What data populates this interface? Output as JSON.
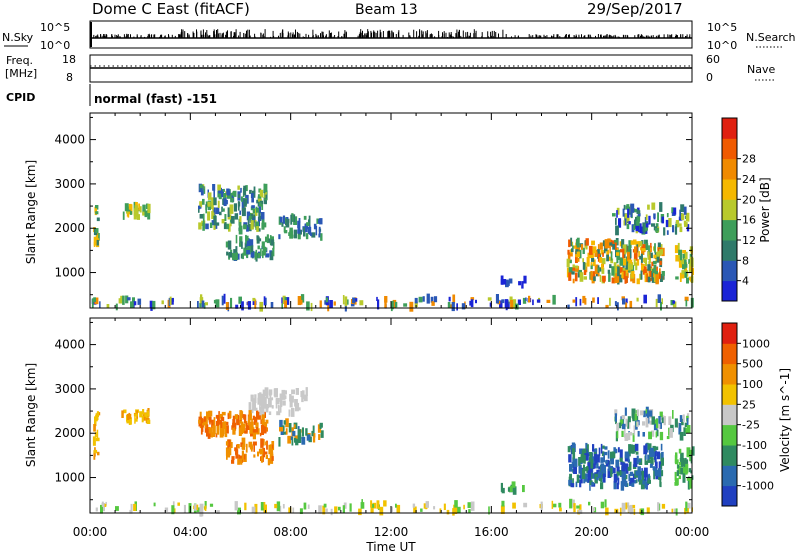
{
  "header": {
    "title": "Dome C East (fitACF)",
    "beam": "Beam 13",
    "date": "29/Sep/2017"
  },
  "status_panels": {
    "nsky_label": "N.Sky",
    "nsearch_label": "N.Search",
    "noise_ticks": [
      "10^5",
      "10^0"
    ],
    "noise_ticks_right": [
      "10^5",
      "10^0"
    ],
    "freq_label": "Freq.",
    "freq_unit": "[MHz]",
    "freq_ticks": [
      "18",
      "8"
    ],
    "nave_label": "Nave",
    "nave_ticks": [
      "60",
      "0"
    ],
    "cpid_label": "CPID",
    "cpid_text": "normal (fast) -151"
  },
  "chart_data": [
    {
      "type": "heatmap",
      "name": "power",
      "ylabel": "Slant Range [km]",
      "y_ticks": [
        1000,
        2000,
        3000,
        4000
      ],
      "ylim": [
        200,
        4600
      ],
      "xlim": [
        0,
        24
      ],
      "colorbar": {
        "label": "Power [dB]",
        "ticks": [
          "4",
          "8",
          "12",
          "16",
          "20",
          "24",
          "28"
        ],
        "colors": [
          "#1a24d6",
          "#2a57b5",
          "#2f7a6a",
          "#3e9e5a",
          "#b8c92c",
          "#f5b800",
          "#f08a00",
          "#f05a00",
          "#e02010"
        ]
      },
      "clusters": [
        {
          "t0": 0.1,
          "t1": 0.3,
          "r0": 1500,
          "r1": 2500,
          "n": 16,
          "c": [
            2,
            3,
            5
          ]
        },
        {
          "t0": 1.2,
          "t1": 2.3,
          "r0": 2250,
          "r1": 2500,
          "n": 30,
          "c": [
            3,
            4,
            5
          ]
        },
        {
          "t0": 4.3,
          "t1": 7.0,
          "r0": 1950,
          "r1": 2950,
          "n": 170,
          "c": [
            1,
            2,
            3,
            4
          ]
        },
        {
          "t0": 5.4,
          "t1": 7.3,
          "r0": 1350,
          "r1": 1800,
          "n": 70,
          "c": [
            1,
            2,
            3
          ]
        },
        {
          "t0": 7.5,
          "t1": 9.2,
          "r0": 1800,
          "r1": 2250,
          "n": 50,
          "c": [
            1,
            2,
            3
          ]
        },
        {
          "t0": 19.0,
          "t1": 22.8,
          "r0": 800,
          "r1": 1700,
          "n": 280,
          "c": [
            2,
            3,
            4,
            5,
            6,
            7
          ]
        },
        {
          "t0": 20.8,
          "t1": 23.8,
          "r0": 1900,
          "r1": 2500,
          "n": 90,
          "c": [
            0,
            1,
            2,
            3,
            4
          ]
        },
        {
          "t0": 23.3,
          "t1": 24.0,
          "r0": 800,
          "r1": 1600,
          "n": 40,
          "c": [
            3,
            4,
            5
          ]
        },
        {
          "t0": 16.3,
          "t1": 17.3,
          "r0": 700,
          "r1": 850,
          "n": 10,
          "c": [
            0,
            1
          ]
        },
        {
          "t0": 0.0,
          "t1": 24.0,
          "r0": 220,
          "r1": 420,
          "n": 170,
          "c": [
            0,
            1,
            3,
            4,
            6
          ]
        }
      ]
    },
    {
      "type": "heatmap",
      "name": "velocity",
      "ylabel": "Slant Range [km]",
      "y_ticks": [
        1000,
        2000,
        3000,
        4000
      ],
      "ylim": [
        200,
        4600
      ],
      "xlim": [
        0,
        24
      ],
      "xlabel": "Time UT",
      "x_ticks": [
        "00:00",
        "04:00",
        "08:00",
        "12:00",
        "16:00",
        "20:00",
        "00:00"
      ],
      "colorbar": {
        "label": "Velocity [m s^-1]",
        "ticks": [
          "1000",
          "500",
          "100",
          "25",
          "-25",
          "-100",
          "-500",
          "-1000"
        ],
        "colors": [
          "#2040c0",
          "#2a6ab0",
          "#2f8a60",
          "#55c840",
          "#c8c8c8",
          "#f2c200",
          "#f09000",
          "#ef6000",
          "#e02010"
        ]
      },
      "clusters": [
        {
          "t0": 0.1,
          "t1": 0.3,
          "r0": 1500,
          "r1": 2500,
          "n": 14,
          "c": [
            5,
            6
          ]
        },
        {
          "t0": 1.2,
          "t1": 2.3,
          "r0": 2250,
          "r1": 2500,
          "n": 28,
          "c": [
            5,
            6
          ]
        },
        {
          "t0": 4.3,
          "t1": 7.0,
          "r0": 1950,
          "r1": 2450,
          "n": 130,
          "c": [
            6,
            7
          ]
        },
        {
          "t0": 6.3,
          "t1": 8.6,
          "r0": 2450,
          "r1": 2950,
          "n": 70,
          "c": [
            4
          ]
        },
        {
          "t0": 5.4,
          "t1": 7.3,
          "r0": 1350,
          "r1": 1800,
          "n": 60,
          "c": [
            6,
            7
          ]
        },
        {
          "t0": 7.5,
          "t1": 9.2,
          "r0": 1800,
          "r1": 2250,
          "n": 40,
          "c": [
            1,
            2,
            6
          ]
        },
        {
          "t0": 19.0,
          "t1": 22.8,
          "r0": 800,
          "r1": 1700,
          "n": 280,
          "c": [
            0,
            1,
            2
          ]
        },
        {
          "t0": 20.8,
          "t1": 23.8,
          "r0": 1900,
          "r1": 2500,
          "n": 90,
          "c": [
            1,
            2,
            3,
            4
          ]
        },
        {
          "t0": 23.3,
          "t1": 24.0,
          "r0": 800,
          "r1": 1600,
          "n": 40,
          "c": [
            2,
            3
          ]
        },
        {
          "t0": 16.3,
          "t1": 17.3,
          "r0": 700,
          "r1": 850,
          "n": 10,
          "c": [
            2,
            3
          ]
        },
        {
          "t0": 0.0,
          "t1": 24.0,
          "r0": 220,
          "r1": 420,
          "n": 140,
          "c": [
            3,
            4,
            5
          ]
        }
      ]
    }
  ]
}
